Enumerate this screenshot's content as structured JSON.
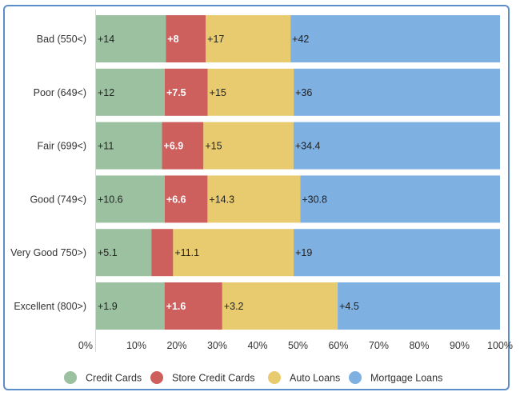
{
  "chart_data": {
    "type": "bar",
    "orientation": "horizontal",
    "stacked": "percent",
    "categories": [
      "Bad (550<)",
      "Poor (649<)",
      "Fair (699<)",
      "Good (749<)",
      "Very Good 750>)",
      "Excellent (800>)"
    ],
    "series": [
      {
        "name": "Credit Cards",
        "values": [
          14,
          12,
          11,
          10.6,
          5.1,
          1.9
        ],
        "labels": [
          "+14",
          "+12",
          "+11",
          "+10.6",
          "+5.1",
          "+1.9"
        ]
      },
      {
        "name": "Store Credit Cards",
        "values": [
          8,
          7.5,
          6.9,
          6.6,
          2,
          1.6
        ],
        "labels": [
          "+8",
          "+7.5",
          "+6.9",
          "+6.6",
          "",
          "+1.6"
        ]
      },
      {
        "name": "Auto Loans",
        "values": [
          17,
          15,
          15,
          14.3,
          11.1,
          3.2
        ],
        "labels": [
          "+17",
          "+15",
          "+15",
          "+14.3",
          "+11.1",
          "+3.2"
        ]
      },
      {
        "name": "Mortgage Loans",
        "values": [
          42,
          36,
          34.4,
          30.8,
          19,
          4.5
        ],
        "labels": [
          "+42",
          "+36",
          "+34.4",
          "+30.8",
          "+19",
          "+4.5"
        ]
      }
    ],
    "xaxis": {
      "ticks": [
        "0%",
        "10%",
        "20%",
        "30%",
        "40%",
        "50%",
        "60%",
        "70%",
        "80%",
        "90%",
        "100%"
      ],
      "range": [
        0,
        100
      ]
    },
    "grid": false,
    "legend": "bottom",
    "colors": [
      "#9bc1a1",
      "#cd5f5d",
      "#e8cb6f",
      "#7eb0e2"
    ]
  }
}
